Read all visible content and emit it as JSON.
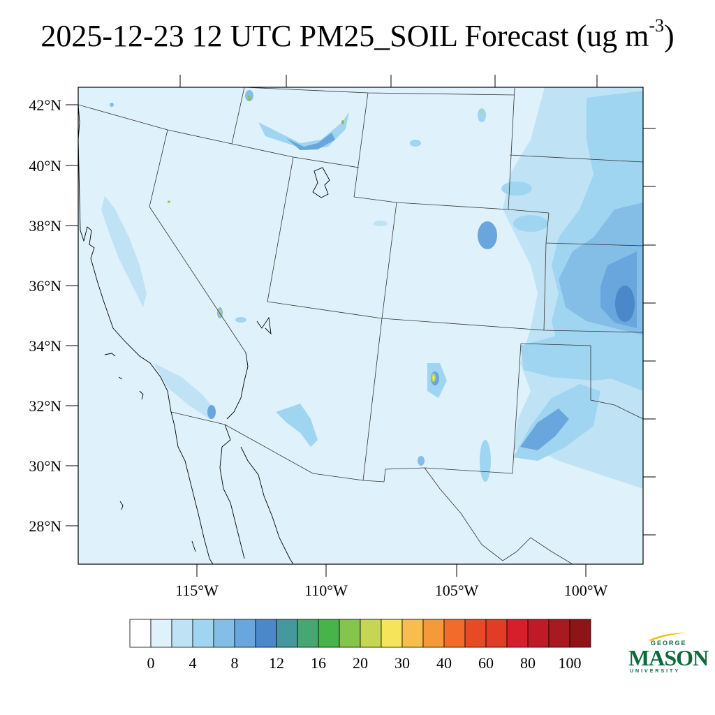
{
  "title": {
    "main": "2025-12-23 12 UTC PM25_SOIL Forecast (ug m",
    "exponent": "-3",
    "close": ")"
  },
  "map": {
    "lat_labels": [
      "42°N",
      "40°N",
      "38°N",
      "36°N",
      "34°N",
      "32°N",
      "30°N",
      "28°N"
    ],
    "lon_labels": [
      "115°W",
      "110°W",
      "105°W",
      "100°W"
    ],
    "background_color": "#dff1fb",
    "dominant_field_colors": [
      "#bfe3f5",
      "#9dd2f0",
      "#84bde5",
      "#6aa6da",
      "#4a88c9"
    ],
    "hotspot_colors": [
      "#4aa83e",
      "#c3d54e",
      "#f2e35a",
      "#f5a93e"
    ]
  },
  "colorbar": {
    "colors": [
      "#ffffff",
      "#dff1fb",
      "#bfe3f5",
      "#9fd5f1",
      "#84bee6",
      "#69a6dd",
      "#4a88c9",
      "#45989b",
      "#47a772",
      "#47b348",
      "#86c54b",
      "#c5d652",
      "#f6e55a",
      "#f7bd4d",
      "#f59a3b",
      "#f26b2a",
      "#e84a26",
      "#e23b26",
      "#d61f2b",
      "#bf1a25",
      "#a81a1f",
      "#8f1418"
    ],
    "tick_labels": [
      "0",
      "4",
      "8",
      "12",
      "16",
      "20",
      "30",
      "40",
      "60",
      "80",
      "100"
    ]
  },
  "logo": {
    "line1": "GEORGE",
    "line2": "MASON",
    "line3": "UNIVERSITY",
    "color": "#0b6b3a",
    "accent": "#f2c31b"
  }
}
